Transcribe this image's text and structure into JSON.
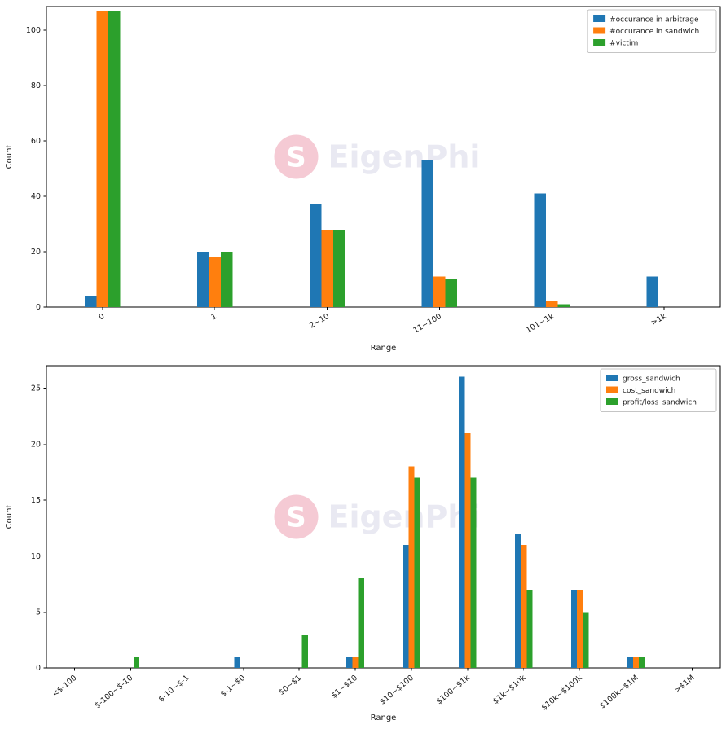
{
  "watermark": {
    "text": "EigenPhi",
    "logo_letter": "S",
    "logo_color": "#f2b8c6",
    "text_color": "#e9e9f2"
  },
  "palette": {
    "blue": "#1f77b4",
    "orange": "#ff7f0e",
    "green": "#2ca02c"
  },
  "chart_data": [
    {
      "type": "bar",
      "title": "",
      "xlabel": "Range",
      "ylabel": "Count",
      "categories": [
        "0",
        "1",
        "2~10",
        "11~100",
        "101~1k",
        ">1k"
      ],
      "series": [
        {
          "name": "#occurance in arbitrage",
          "color": "#1f77b4",
          "values": [
            4,
            20,
            37,
            53,
            41,
            11
          ]
        },
        {
          "name": "#occurance in sandwich",
          "color": "#ff7f0e",
          "values": [
            107,
            18,
            28,
            11,
            2,
            0
          ]
        },
        {
          "name": "#victim",
          "color": "#2ca02c",
          "values": [
            107,
            20,
            28,
            10,
            1,
            0
          ]
        }
      ],
      "yticks": [
        0,
        20,
        40,
        60,
        80,
        100
      ],
      "ylim": [
        0,
        108.5
      ],
      "legend_position": "upper right",
      "grid": false
    },
    {
      "type": "bar",
      "title": "",
      "xlabel": "Range",
      "ylabel": "Count",
      "categories": [
        "<$-100",
        "$-100~$-10",
        "$-10~$-1",
        "$-1~$0",
        "$0~$1",
        "$1~$10",
        "$10~$100",
        "$100~$1k",
        "$1k~$10k",
        "$10k~$100k",
        "$100k~$1M",
        ">$1M"
      ],
      "series": [
        {
          "name": "gross_sandwich",
          "color": "#1f77b4",
          "values": [
            0,
            0,
            0,
            1,
            0,
            1,
            11,
            26,
            12,
            7,
            1,
            0
          ]
        },
        {
          "name": "cost_sandwich",
          "color": "#ff7f0e",
          "values": [
            0,
            0,
            0,
            0,
            0,
            1,
            18,
            21,
            11,
            7,
            1,
            0
          ]
        },
        {
          "name": "profit/loss_sandwich",
          "color": "#2ca02c",
          "values": [
            0,
            1,
            0,
            0,
            3,
            8,
            17,
            17,
            7,
            5,
            1,
            0
          ]
        }
      ],
      "yticks": [
        0,
        5,
        10,
        15,
        20,
        25
      ],
      "ylim": [
        0,
        27
      ],
      "legend_position": "upper right",
      "grid": false
    }
  ]
}
